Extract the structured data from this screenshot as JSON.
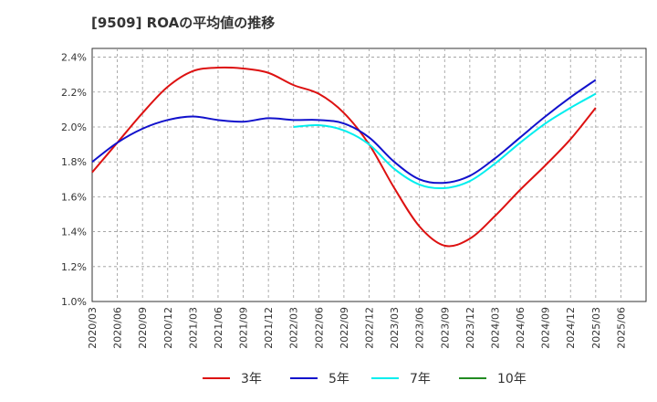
{
  "title": "[9509]  ROAの平均値の推移",
  "chart_data": {
    "type": "line",
    "title": "[9509]  ROAの平均値の推移",
    "xlabel": "",
    "ylabel": "",
    "x": [
      "2020/03",
      "2020/06",
      "2020/09",
      "2020/12",
      "2021/03",
      "2021/06",
      "2021/09",
      "2021/12",
      "2022/03",
      "2022/06",
      "2022/09",
      "2022/12",
      "2023/03",
      "2023/06",
      "2023/09",
      "2023/12",
      "2024/03",
      "2024/06",
      "2024/09",
      "2024/12",
      "2025/03"
    ],
    "x_tick_labels": [
      "2020/03",
      "2020/06",
      "2020/09",
      "2020/12",
      "2021/03",
      "2021/06",
      "2021/09",
      "2021/12",
      "2022/03",
      "2022/06",
      "2022/09",
      "2022/12",
      "2023/03",
      "2023/06",
      "2023/09",
      "2023/12",
      "2024/03",
      "2024/06",
      "2024/09",
      "2024/12",
      "2025/03",
      "2025/06"
    ],
    "y_tick_labels": [
      "1.0%",
      "1.2%",
      "1.4%",
      "1.6%",
      "1.8%",
      "2.0%",
      "2.2%",
      "2.4%"
    ],
    "y_ticks": [
      1.0,
      1.2,
      1.4,
      1.6,
      1.8,
      2.0,
      2.2,
      2.4
    ],
    "ylim": [
      1.0,
      2.45
    ],
    "grid": true,
    "legend_position": "bottom",
    "series": [
      {
        "name": "3年",
        "color": "#dd1111",
        "values": [
          1.74,
          1.91,
          2.08,
          2.23,
          2.32,
          2.34,
          2.335,
          2.31,
          2.24,
          2.19,
          2.08,
          1.9,
          1.65,
          1.43,
          1.32,
          1.36,
          1.49,
          1.64,
          1.78,
          1.93,
          2.11
        ]
      },
      {
        "name": "5年",
        "color": "#1111cc",
        "values": [
          1.8,
          1.91,
          1.99,
          2.04,
          2.06,
          2.04,
          2.03,
          2.05,
          2.04,
          2.04,
          2.02,
          1.94,
          1.8,
          1.7,
          1.68,
          1.72,
          1.82,
          1.94,
          2.06,
          2.17,
          2.27
        ]
      },
      {
        "name": "7年",
        "color": "#00eeee",
        "values": [
          null,
          null,
          null,
          null,
          null,
          null,
          null,
          null,
          2.0,
          2.01,
          1.98,
          1.9,
          1.76,
          1.67,
          1.65,
          1.69,
          1.79,
          1.91,
          2.02,
          2.11,
          2.19
        ]
      },
      {
        "name": "10年",
        "color": "#228b22",
        "values": [
          null,
          null,
          null,
          null,
          null,
          null,
          null,
          null,
          null,
          null,
          null,
          null,
          null,
          null,
          null,
          null,
          null,
          null,
          null,
          null,
          null
        ]
      }
    ]
  }
}
